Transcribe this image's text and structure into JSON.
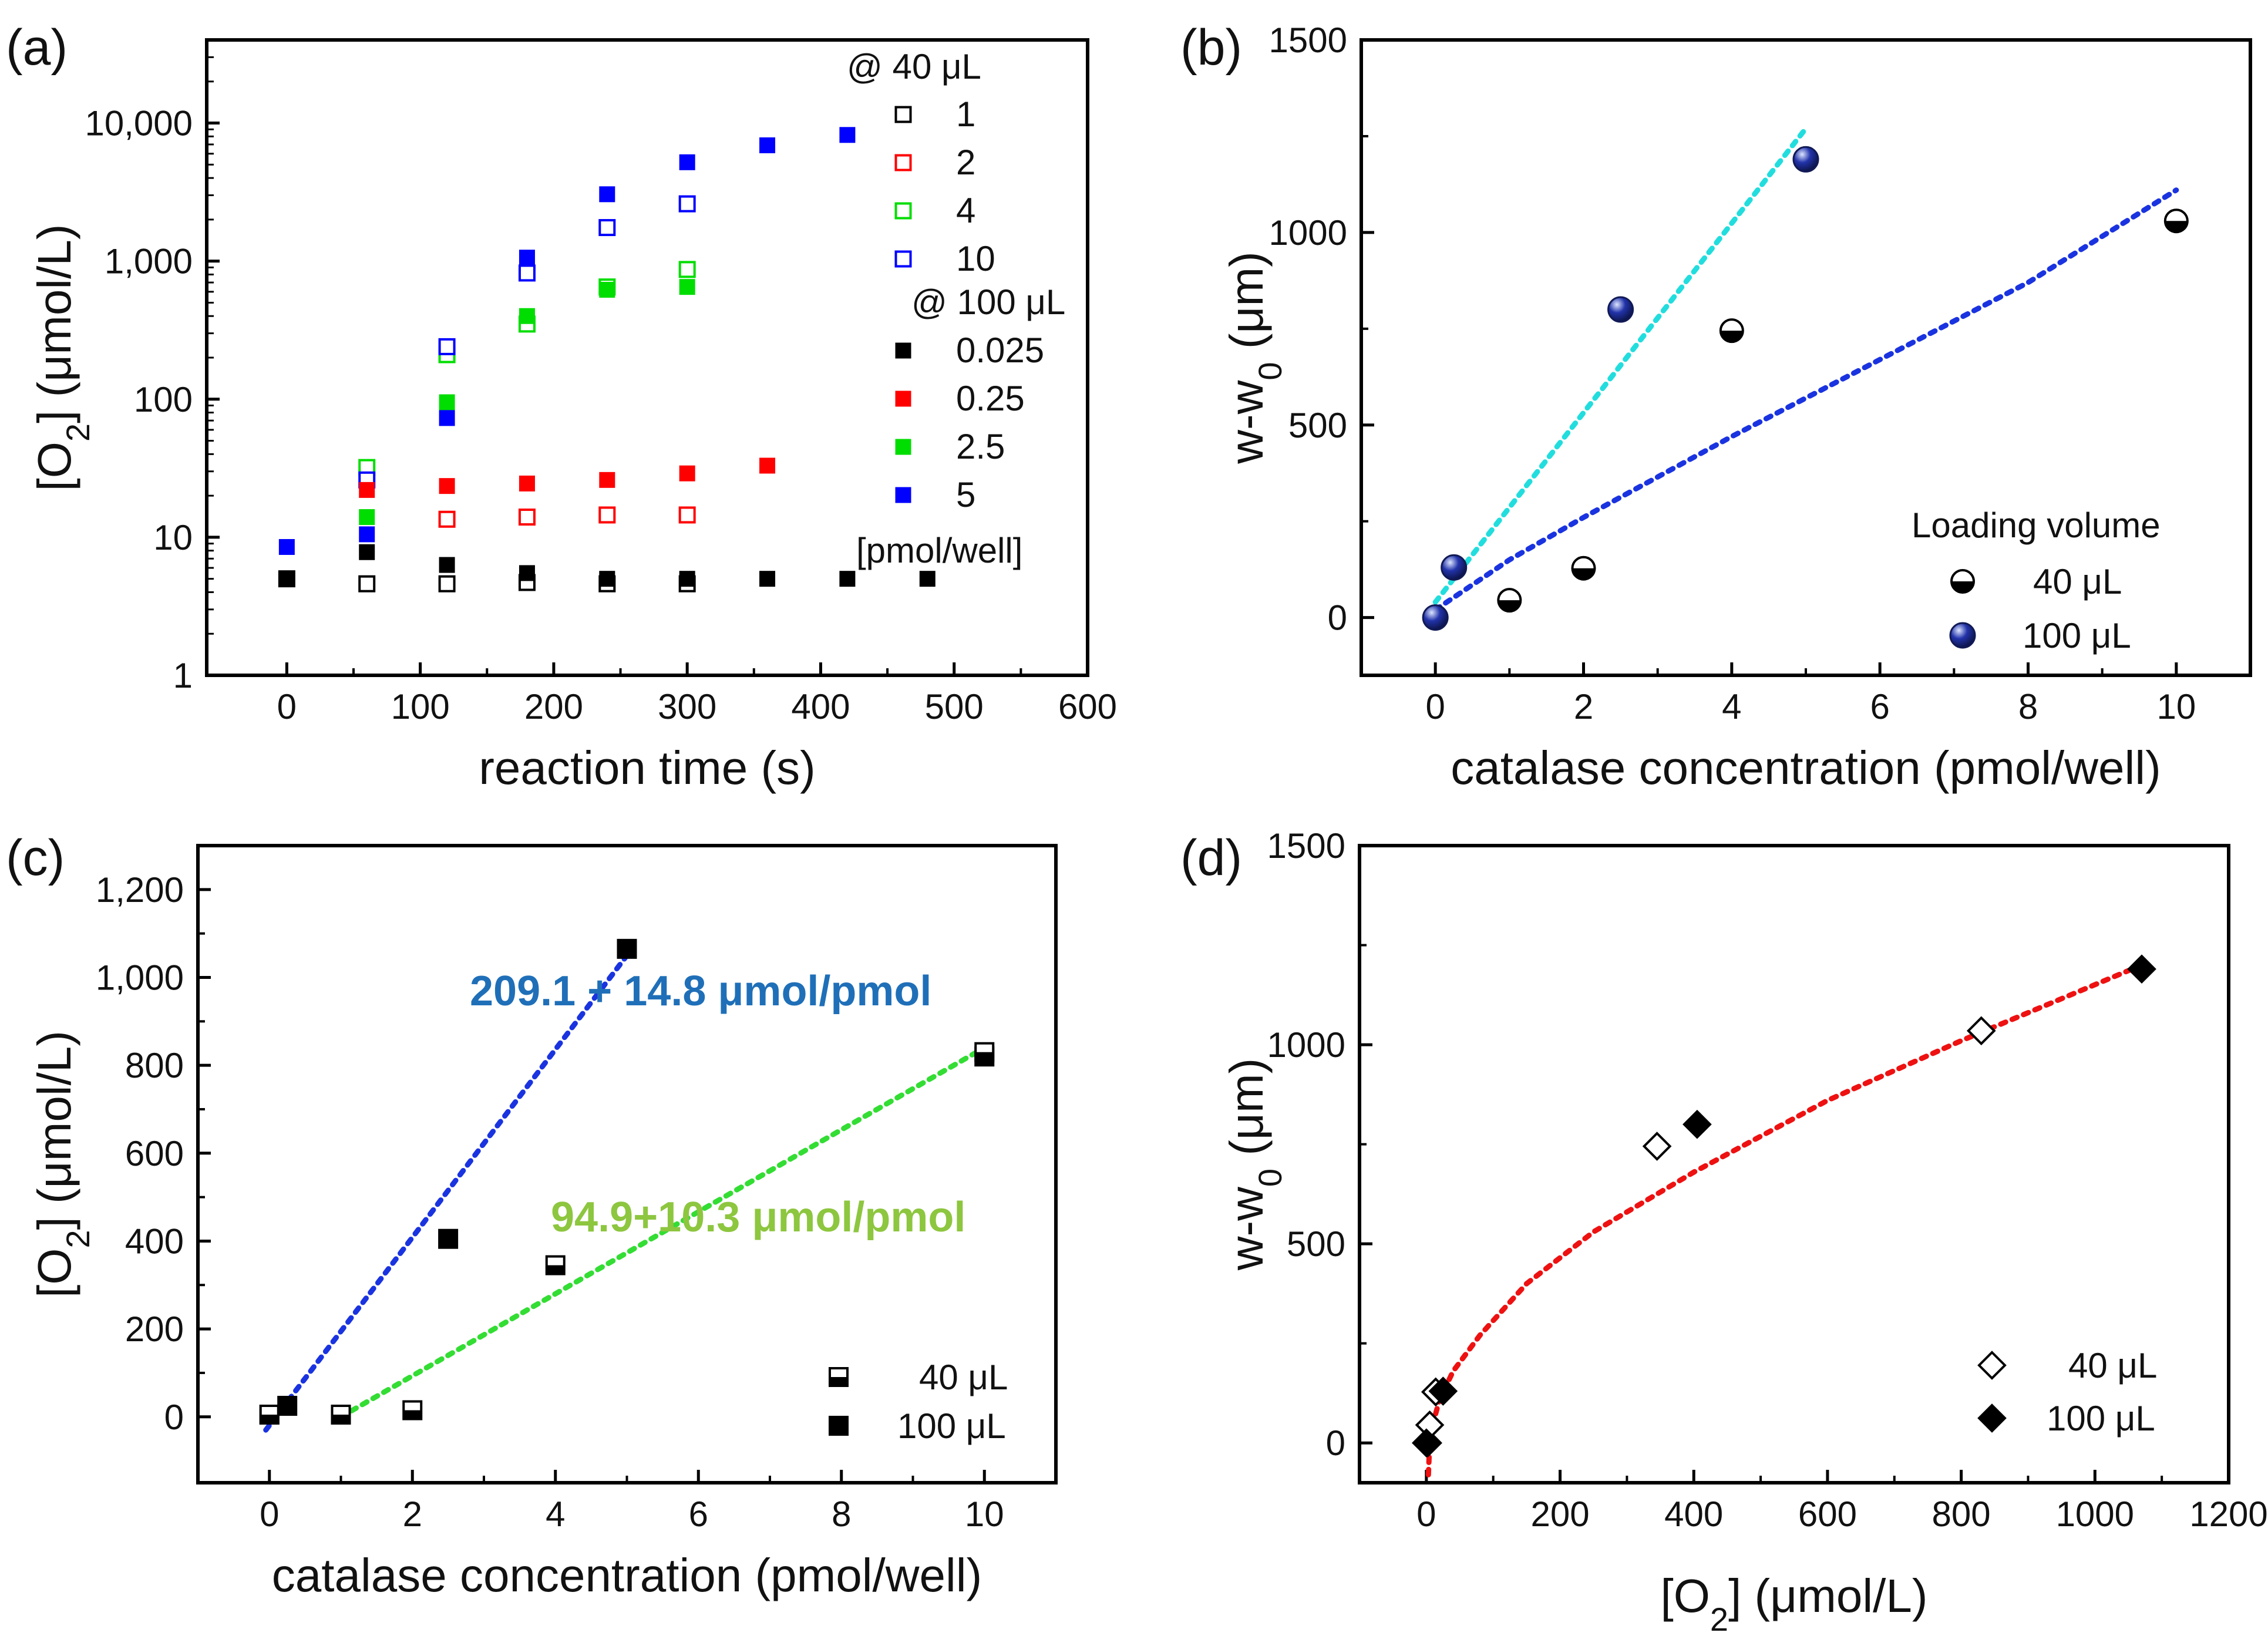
{
  "figure_label": "catalase / oxygen generation multi-panel figure",
  "colors": {
    "black": "#000000",
    "red": "#ff0000",
    "green": "#00dd00",
    "blue": "#0000ff",
    "cyan": "#22dddd",
    "fit_blue": "#1a33e0",
    "fit_green": "#33dd33",
    "fit_red": "#ee1111",
    "label_blue": "#1f6fb8",
    "label_green": "#8dc63f",
    "sphere_blue": "#2233aa"
  },
  "chart_data": [
    {
      "id": "a",
      "panel_label": "(a)",
      "type": "scatter",
      "yscale": "log",
      "xlabel": "reaction time (s)",
      "ylabel_main": "[O",
      "ylabel_sub": "2",
      "ylabel_rest": "] (μmol/L)",
      "xlim": [
        -60,
        600
      ],
      "ylim": [
        1,
        40000
      ],
      "xticks": [
        0,
        100,
        200,
        300,
        400,
        500,
        600
      ],
      "xtick_labels": [
        "0",
        "100",
        "200",
        "300",
        "400",
        "500",
        "600"
      ],
      "yticks": [
        1,
        10,
        100,
        1000,
        10000
      ],
      "ytick_labels": [
        "1",
        "10",
        "100",
        "1,000",
        "10,000"
      ],
      "legend": {
        "header_1": "@ 40 μL",
        "header_2": "@ 100 μL",
        "footer": "[pmol/well]"
      },
      "series": [
        {
          "name": "1",
          "group": "40",
          "marker": "open",
          "color": "#000000",
          "points": [
            [
              0,
              5
            ],
            [
              60,
              4.6
            ],
            [
              120,
              4.6
            ],
            [
              180,
              4.7
            ],
            [
              240,
              4.6
            ],
            [
              300,
              4.6
            ]
          ]
        },
        {
          "name": "2",
          "group": "40",
          "marker": "open",
          "color": "#ff0000",
          "points": [
            [
              120,
              13.5
            ],
            [
              180,
              14
            ],
            [
              240,
              14.5
            ],
            [
              300,
              14.5
            ]
          ]
        },
        {
          "name": "4",
          "group": "40",
          "marker": "open",
          "color": "#00dd00",
          "points": [
            [
              60,
              32
            ],
            [
              120,
              210
            ],
            [
              180,
              350
            ],
            [
              240,
              650
            ],
            [
              300,
              870
            ]
          ]
        },
        {
          "name": "10",
          "group": "40",
          "marker": "open",
          "color": "#0000ff",
          "points": [
            [
              60,
              26
            ],
            [
              120,
              240
            ],
            [
              180,
              820
            ],
            [
              240,
              1750
            ],
            [
              300,
              2600
            ]
          ]
        },
        {
          "name": "0.025",
          "group": "100",
          "marker": "filled",
          "color": "#000000",
          "points": [
            [
              0,
              5
            ],
            [
              60,
              7.8
            ],
            [
              120,
              6.3
            ],
            [
              180,
              5.5
            ],
            [
              240,
              5
            ],
            [
              300,
              5
            ],
            [
              360,
              5
            ],
            [
              420,
              5
            ],
            [
              480,
              5
            ]
          ]
        },
        {
          "name": "0.25",
          "group": "100",
          "marker": "filled",
          "color": "#ff0000",
          "points": [
            [
              60,
              22
            ],
            [
              120,
              23.5
            ],
            [
              180,
              24.5
            ],
            [
              240,
              26
            ],
            [
              300,
              29
            ],
            [
              360,
              33
            ]
          ]
        },
        {
          "name": "2.5",
          "group": "100",
          "marker": "filled",
          "color": "#00dd00",
          "points": [
            [
              60,
              14
            ],
            [
              120,
              95
            ],
            [
              180,
              400
            ],
            [
              240,
              620
            ],
            [
              300,
              650
            ]
          ]
        },
        {
          "name": "5",
          "group": "100",
          "marker": "filled",
          "color": "#0000ff",
          "points": [
            [
              0,
              8.5
            ],
            [
              60,
              10.5
            ],
            [
              120,
              73
            ],
            [
              180,
              1060
            ],
            [
              240,
              3050
            ],
            [
              300,
              5200
            ],
            [
              360,
              6900
            ],
            [
              420,
              8200
            ]
          ]
        }
      ]
    },
    {
      "id": "b",
      "panel_label": "(b)",
      "type": "scatter",
      "xlabel": "catalase concentration (pmol/well)",
      "ylabel_main": "w-w",
      "ylabel_sub": "0",
      "ylabel_rest": " (μm)",
      "xlim": [
        -1,
        11
      ],
      "ylim": [
        -150,
        1500
      ],
      "xticks": [
        0,
        2,
        4,
        6,
        8,
        10
      ],
      "xtick_labels": [
        "0",
        "2",
        "4",
        "6",
        "8",
        "10"
      ],
      "yticks": [
        0,
        500,
        1000,
        1500
      ],
      "ytick_labels": [
        "0",
        "500",
        "1000",
        "1500"
      ],
      "legend": {
        "title": "Loading volume",
        "entries": [
          "40 μL",
          "100 μL"
        ]
      },
      "series": [
        {
          "name": "40 μL",
          "marker": "half-circle",
          "points": [
            [
              0,
              0
            ],
            [
              1,
              45
            ],
            [
              2,
              128
            ],
            [
              4,
              745
            ],
            [
              10,
              1030
            ]
          ]
        },
        {
          "name": "100 μL",
          "marker": "sphere",
          "points": [
            [
              0,
              0
            ],
            [
              0.25,
              130
            ],
            [
              2.5,
              800
            ],
            [
              5,
              1190
            ]
          ]
        }
      ],
      "fits": [
        {
          "color": "#22dddd",
          "points": [
            [
              0,
              40
            ],
            [
              5,
              1270
            ]
          ]
        },
        {
          "color": "#1a33e0",
          "points": [
            [
              0,
              20
            ],
            [
              1,
              150
            ],
            [
              2,
              260
            ],
            [
              4,
              470
            ],
            [
              6,
              670
            ],
            [
              8,
              870
            ],
            [
              10,
              1110
            ]
          ]
        }
      ]
    },
    {
      "id": "c",
      "panel_label": "(c)",
      "type": "scatter",
      "xlabel": "catalase concentration (pmol/well)",
      "ylabel_main": "[O",
      "ylabel_sub": "2",
      "ylabel_rest": "] (μmol/L)",
      "xlim": [
        -1,
        11
      ],
      "ylim": [
        -150,
        1300
      ],
      "xticks": [
        0,
        2,
        4,
        6,
        8,
        10
      ],
      "xtick_labels": [
        "0",
        "2",
        "4",
        "6",
        "8",
        "10"
      ],
      "yticks": [
        0,
        200,
        400,
        600,
        800,
        1000,
        1200
      ],
      "ytick_labels": [
        "0",
        "200",
        "400",
        "600",
        "800",
        "1,000",
        "1,200"
      ],
      "legend": {
        "entries": [
          "40 μL",
          "100 μL"
        ]
      },
      "fit_labels": [
        "209.1 + 14.8 μmol/pmol",
        "94.9+10.3 μmol/pmol"
      ],
      "series": [
        {
          "name": "40 μL",
          "marker": "half-square",
          "points": [
            [
              0,
              5
            ],
            [
              1,
              5
            ],
            [
              2,
              15
            ],
            [
              4,
              345
            ],
            [
              10,
              830
            ]
          ]
        },
        {
          "name": "100 μL",
          "marker": "filled-square",
          "points": [
            [
              0,
              5
            ],
            [
              0.25,
              25
            ],
            [
              2.5,
              405
            ],
            [
              5,
              1065
            ],
            [
              10,
              820
            ]
          ]
        }
      ],
      "fits": [
        {
          "color": "#1a33e0",
          "points": [
            [
              -0.05,
              -30
            ],
            [
              5,
              1050
            ]
          ]
        },
        {
          "color": "#33dd33",
          "points": [
            [
              1,
              0
            ],
            [
              10,
              840
            ]
          ]
        }
      ]
    },
    {
      "id": "d",
      "panel_label": "(d)",
      "type": "scatter",
      "xlabel_main": "[O",
      "xlabel_sub": "2",
      "xlabel_rest": "] (μmol/L)",
      "ylabel_main": "w-w",
      "ylabel_sub": "0",
      "ylabel_rest": " (μm)",
      "xlim": [
        -100,
        1200
      ],
      "ylim": [
        -100,
        1500
      ],
      "xticks": [
        0,
        200,
        400,
        600,
        800,
        1000,
        1200
      ],
      "xtick_labels": [
        "0",
        "200",
        "400",
        "600",
        "800",
        "1000",
        "1200"
      ],
      "yticks": [
        0,
        500,
        1000,
        1500
      ],
      "ytick_labels": [
        "0",
        "500",
        "1000",
        "1500"
      ],
      "legend": {
        "entries": [
          "40 μL",
          "100 μL"
        ]
      },
      "series": [
        {
          "name": "40 μL",
          "marker": "open-diamond",
          "points": [
            [
              2,
              0
            ],
            [
              5,
              45
            ],
            [
              14,
              128
            ],
            [
              345,
              745
            ],
            [
              830,
              1035
            ]
          ]
        },
        {
          "name": "100 μL",
          "marker": "filled-diamond",
          "points": [
            [
              0,
              0
            ],
            [
              25,
              130
            ],
            [
              405,
              800
            ],
            [
              1070,
              1190
            ]
          ]
        }
      ],
      "fits": [
        {
          "color": "#ee1111",
          "points": [
            [
              3,
              -80
            ],
            [
              5,
              0
            ],
            [
              10,
              50
            ],
            [
              20,
              110
            ],
            [
              40,
              180
            ],
            [
              80,
              270
            ],
            [
              150,
              400
            ],
            [
              250,
              530
            ],
            [
              400,
              680
            ],
            [
              600,
              860
            ],
            [
              800,
              1010
            ],
            [
              1070,
              1200
            ]
          ]
        }
      ]
    }
  ]
}
